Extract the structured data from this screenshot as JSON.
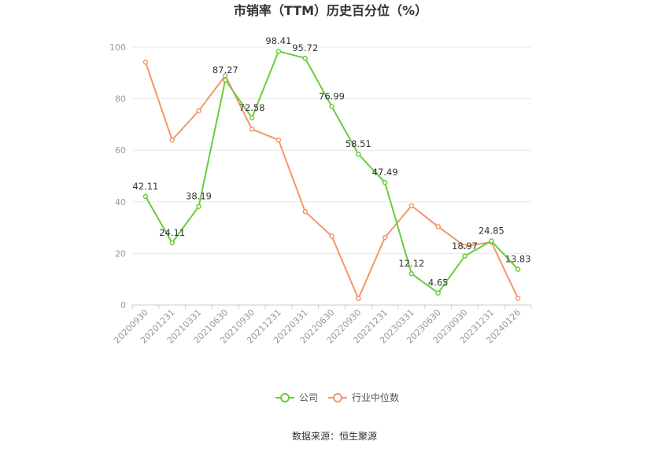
{
  "chart_data": {
    "type": "line",
    "title": "市销率（TTM）历史百分位（%）",
    "categories": [
      "20200930",
      "20201231",
      "20210331",
      "20210630",
      "20210930",
      "20211231",
      "20220331",
      "20220630",
      "20220930",
      "20221231",
      "20230331",
      "20230630",
      "20230930",
      "20231231",
      "20240126"
    ],
    "ylim": [
      0,
      100
    ],
    "yticks": [
      0,
      20,
      40,
      60,
      80,
      100
    ],
    "grid": true,
    "legend_position": "bottom",
    "series": [
      {
        "name": "公司",
        "color": "#6ACD3B",
        "show_labels": true,
        "values": [
          42.11,
          24.11,
          38.19,
          87.27,
          72.58,
          98.41,
          95.72,
          76.99,
          58.51,
          47.49,
          12.12,
          4.65,
          18.97,
          24.85,
          13.83
        ]
      },
      {
        "name": "行业中位数",
        "color": "#F4966A",
        "show_labels": false,
        "values": [
          94.2,
          64.0,
          75.3,
          89.0,
          68.2,
          64.0,
          36.2,
          26.7,
          2.5,
          26.2,
          38.5,
          30.4,
          22.8,
          24.4,
          2.6
        ]
      }
    ]
  },
  "source_text": "数据来源：恒生聚源"
}
